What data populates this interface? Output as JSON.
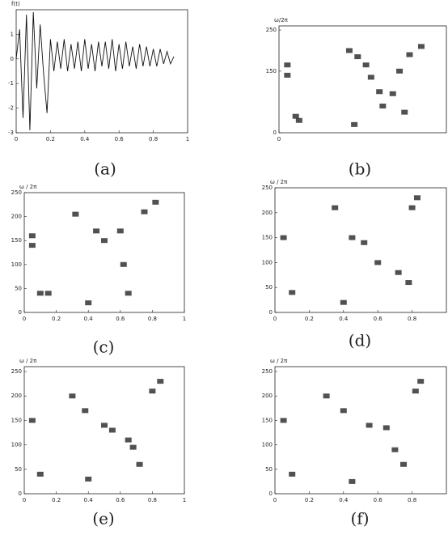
{
  "chart_data": [
    {
      "type": "line",
      "y_label": "f(t)",
      "caption": "(a)",
      "color": "#111111",
      "x": [
        0,
        0.02,
        0.04,
        0.06,
        0.08,
        0.1,
        0.12,
        0.14,
        0.16,
        0.18,
        0.2,
        0.22,
        0.24,
        0.26,
        0.28,
        0.3,
        0.32,
        0.34,
        0.36,
        0.38,
        0.4,
        0.42,
        0.44,
        0.46,
        0.48,
        0.5,
        0.52,
        0.54,
        0.56,
        0.58,
        0.6,
        0.62,
        0.64,
        0.66,
        0.68,
        0.7,
        0.72,
        0.74,
        0.76,
        0.78,
        0.8,
        0.82,
        0.84,
        0.86,
        0.88,
        0.9,
        0.92
      ],
      "values": [
        0,
        1.2,
        -2.4,
        1.8,
        -2.9,
        1.9,
        -1.2,
        1.4,
        -0.6,
        -2.2,
        0.8,
        -0.5,
        0.7,
        -0.4,
        0.8,
        -0.5,
        0.6,
        -0.4,
        0.7,
        -0.5,
        0.8,
        -0.4,
        0.6,
        -0.5,
        0.7,
        -0.3,
        0.7,
        -0.4,
        0.8,
        -0.5,
        0.6,
        -0.4,
        0.7,
        -0.3,
        0.5,
        -0.4,
        0.6,
        -0.3,
        0.5,
        -0.3,
        0.4,
        -0.3,
        0.4,
        -0.2,
        0.3,
        -0.2,
        0.1
      ],
      "xlim": [
        0,
        1
      ],
      "xticks": [
        0,
        0.2,
        0.4,
        0.6,
        0.8,
        1
      ],
      "ylim": [
        -3,
        2
      ],
      "yticks": [
        -3,
        -2,
        -1,
        0,
        1
      ]
    },
    {
      "type": "scatter",
      "y_label": "ω/2π",
      "caption": "(b)",
      "color": "#333333",
      "x": [
        0.05,
        0.05,
        0.1,
        0.12,
        0.42,
        0.47,
        0.52,
        0.55,
        0.6,
        0.68,
        0.72,
        0.78,
        0.85,
        0.45,
        0.62,
        0.75
      ],
      "values": [
        165,
        140,
        40,
        30,
        200,
        185,
        165,
        135,
        100,
        95,
        150,
        190,
        210,
        20,
        65,
        50
      ],
      "xlim": [
        0,
        1
      ],
      "xticks": [
        0
      ],
      "ylim": [
        0,
        260
      ],
      "yticks": [
        0,
        150,
        250
      ]
    },
    {
      "type": "scatter",
      "y_label": "ω / 2π",
      "caption": "(c)",
      "color": "#333333",
      "x": [
        0.05,
        0.05,
        0.1,
        0.15,
        0.32,
        0.45,
        0.5,
        0.6,
        0.62,
        0.65,
        0.75,
        0.82,
        0.4
      ],
      "values": [
        160,
        140,
        40,
        40,
        205,
        170,
        150,
        170,
        100,
        40,
        210,
        230,
        20
      ],
      "xlim": [
        0,
        1
      ],
      "xticks": [
        0,
        0.2,
        0.4,
        0.6,
        0.8,
        1
      ],
      "ylim": [
        0,
        250
      ],
      "yticks": [
        0,
        50,
        100,
        150,
        200,
        250
      ]
    },
    {
      "type": "scatter",
      "y_label": "ω / 2π",
      "caption": "(d)",
      "color": "#333333",
      "x": [
        0.05,
        0.1,
        0.45,
        0.52,
        0.6,
        0.72,
        0.78,
        0.8,
        0.83,
        0.35,
        0.4
      ],
      "values": [
        150,
        40,
        150,
        140,
        100,
        80,
        60,
        210,
        230,
        210,
        20
      ],
      "xlim": [
        0,
        1
      ],
      "xticks": [
        0,
        0.2,
        0.4,
        0.6,
        0.8
      ],
      "ylim": [
        0,
        250
      ],
      "yticks": [
        0,
        50,
        100,
        150,
        200,
        250
      ]
    },
    {
      "type": "scatter",
      "y_label": "ω / 2π",
      "caption": "(e)",
      "color": "#333333",
      "x": [
        0.05,
        0.1,
        0.3,
        0.38,
        0.5,
        0.55,
        0.65,
        0.68,
        0.72,
        0.8,
        0.85,
        0.4
      ],
      "values": [
        150,
        40,
        200,
        170,
        140,
        130,
        110,
        95,
        60,
        210,
        230,
        30
      ],
      "xlim": [
        0,
        1
      ],
      "xticks": [
        0,
        0.2,
        0.4,
        0.6,
        0.8,
        1
      ],
      "ylim": [
        0,
        260
      ],
      "yticks": [
        0,
        50,
        100,
        150,
        200,
        250
      ]
    },
    {
      "type": "scatter",
      "y_label": "ω / 2π",
      "caption": "(f)",
      "color": "#333333",
      "x": [
        0.05,
        0.1,
        0.3,
        0.4,
        0.55,
        0.65,
        0.7,
        0.75,
        0.82,
        0.85,
        0.45
      ],
      "values": [
        150,
        40,
        200,
        170,
        140,
        135,
        90,
        60,
        210,
        230,
        25
      ],
      "xlim": [
        0,
        1
      ],
      "xticks": [
        0,
        0.2,
        0.4,
        0.6,
        0.8
      ],
      "ylim": [
        0,
        260
      ],
      "yticks": [
        0,
        50,
        100,
        150,
        200,
        250
      ]
    }
  ]
}
